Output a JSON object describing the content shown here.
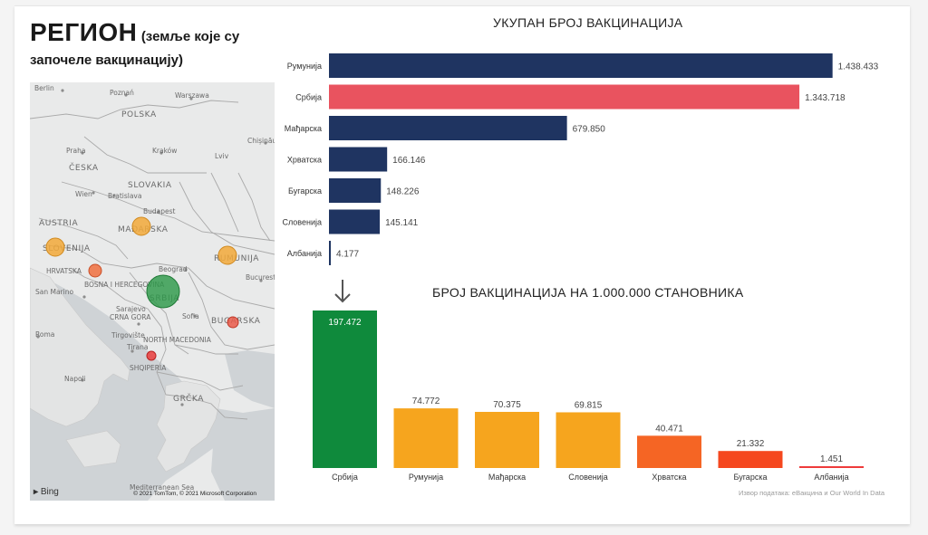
{
  "header": {
    "title": "РЕГИОН",
    "subtitle_part1": "(земље које су",
    "subtitle_part2": "започеле вакцинацију)"
  },
  "map": {
    "labels": [
      "Poznań",
      "Warszawa",
      "Berlin",
      "POLSKA",
      "Praha",
      "ČESKA",
      "Kraków",
      "Lviv",
      "SLOVAKIA",
      "Wien",
      "Bratislava",
      "AUSTRIA",
      "Budapest",
      "MAĐARSKA",
      "SLOVENIJA",
      "HRVATSKA",
      "San Marino",
      "BOSNA I HERCEGOVINA",
      "SRBIJA",
      "Beograd",
      "RUMUNIJA",
      "Bucurest",
      "BUGARSKA",
      "Sofia",
      "CRNA GORA",
      "NORTH MACEDONIA",
      "Tirana",
      "SHQIPERIA",
      "Roma",
      "Napoli",
      "GRČKA",
      "Mediterranean Sea",
      "Chișinău",
      "Sarajevo",
      "Tirgovište"
    ],
    "bing_label": "Bing",
    "copyright": "© 2021 TomTom, © 2021 Microsoft Corporation",
    "bubbles": [
      {
        "country": "SRBIJA",
        "color": "#2e9a4a",
        "size": 1.0
      },
      {
        "country": "RUMUNIJA",
        "color": "#f2a93a",
        "size": 0.5
      },
      {
        "country": "MAĐARSKA",
        "color": "#f2a93a",
        "size": 0.47
      },
      {
        "country": "SLOVENIJA",
        "color": "#f2a93a",
        "size": 0.47
      },
      {
        "country": "HRVATSKA",
        "color": "#f07040",
        "size": 0.35
      },
      {
        "country": "BUGARSKA",
        "color": "#ea5a4a",
        "size": 0.3
      },
      {
        "country": "SHQIPERIA",
        "color": "#ea3d3d",
        "size": 0.26
      }
    ]
  },
  "chart_data": [
    {
      "type": "bar",
      "orientation": "horizontal",
      "title": "УКУПАН БРОЈ ВАКЦИНАЦИЈА",
      "categories": [
        "Румунија",
        "Србија",
        "Мађарска",
        "Хрватска",
        "Бугарска",
        "Словенија",
        "Албанија"
      ],
      "values": [
        1438433,
        1343718,
        679850,
        166146,
        148226,
        145141,
        4177
      ],
      "value_labels": [
        "1.438.433",
        "1.343.718",
        "679.850",
        "166.146",
        "148.226",
        "145.141",
        "4.177"
      ],
      "colors": [
        "#1f3461",
        "#e9535f",
        "#1f3461",
        "#1f3461",
        "#1f3461",
        "#1f3461",
        "#1f3461"
      ],
      "xlim": [
        0,
        1460000
      ]
    },
    {
      "type": "bar",
      "orientation": "vertical",
      "title": "БРОЈ ВАКЦИНАЦИЈА НА 1.000.000 СТАНОВНИКА",
      "categories": [
        "Србија",
        "Румунија",
        "Мађарска",
        "Словенија",
        "Хрватска",
        "Бугарска",
        "Албанија"
      ],
      "values": [
        197472,
        74772,
        70375,
        69815,
        40471,
        21332,
        1451
      ],
      "value_labels": [
        "197.472",
        "74.772",
        "70.375",
        "69.815",
        "40.471",
        "21.332",
        "1.451"
      ],
      "colors": [
        "#0f8a3c",
        "#f6a51e",
        "#f6a51e",
        "#f6a51e",
        "#f56524",
        "#f5471e",
        "#ee3b3b"
      ],
      "ylim": [
        0,
        200000
      ]
    }
  ],
  "source_note": "Извор података: еВакцина и Our World In Data",
  "arrow_icon": "down-arrow-icon"
}
